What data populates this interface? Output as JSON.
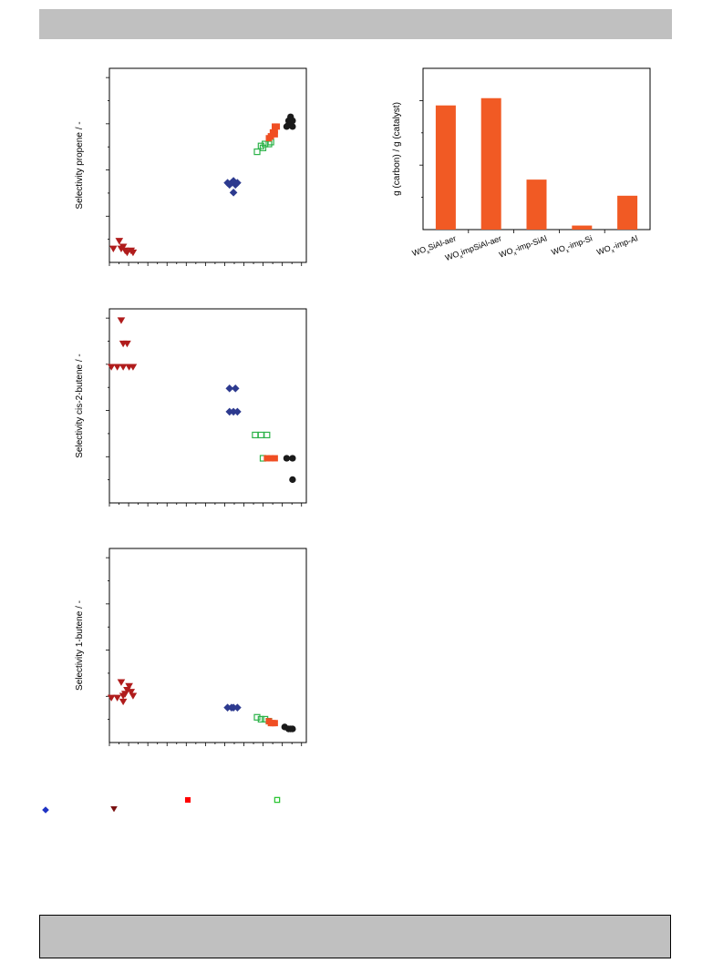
{
  "chart_data": [
    {
      "type": "scatter",
      "ylabel": "Selectivity propene / -",
      "xlim": [
        0,
        100
      ],
      "ylim": [
        0,
        100
      ],
      "series": [
        {
          "marker": "triangle-down",
          "color": "#b01c1c",
          "points": [
            [
              2,
              7
            ],
            [
              5,
              11
            ],
            [
              7,
              8
            ],
            [
              8,
              6
            ],
            [
              9,
              5
            ],
            [
              11,
              6
            ],
            [
              12,
              5
            ],
            [
              6,
              7
            ]
          ]
        },
        {
          "marker": "diamond",
          "color": "#2d3a8f",
          "points": [
            [
              60,
              41
            ],
            [
              62,
              41
            ],
            [
              64,
              40
            ],
            [
              61,
              40
            ],
            [
              63,
              42
            ],
            [
              65,
              41
            ],
            [
              63,
              36
            ]
          ]
        },
        {
          "marker": "square-open",
          "color": "#2db34a",
          "points": [
            [
              75,
              57
            ],
            [
              78,
              59
            ],
            [
              79,
              61
            ],
            [
              81,
              61
            ],
            [
              82,
              62
            ],
            [
              77,
              60
            ]
          ]
        },
        {
          "marker": "square",
          "color": "#f04e23",
          "points": [
            [
              81,
              64
            ],
            [
              82,
              65
            ],
            [
              83,
              67
            ],
            [
              84,
              68
            ],
            [
              84,
              70
            ],
            [
              85,
              70
            ],
            [
              84,
              66
            ]
          ]
        },
        {
          "marker": "circle",
          "color": "#1a1a1a",
          "points": [
            [
              90,
              70
            ],
            [
              93,
              70
            ],
            [
              91,
              73
            ],
            [
              92,
              75
            ],
            [
              93,
              73
            ],
            [
              91,
              71
            ]
          ]
        }
      ]
    },
    {
      "type": "scatter",
      "ylabel": "Selectivity cis-2-butene / -",
      "xlim": [
        0,
        100
      ],
      "ylim": [
        0,
        100
      ],
      "series": [
        {
          "marker": "triangle-down",
          "color": "#b01c1c",
          "points": [
            [
              6,
              94
            ],
            [
              7,
              82
            ],
            [
              9,
              82
            ],
            [
              1,
              70
            ],
            [
              4,
              70
            ],
            [
              7,
              70
            ],
            [
              10,
              70
            ],
            [
              12,
              70
            ]
          ]
        },
        {
          "marker": "diamond",
          "color": "#2d3a8f",
          "points": [
            [
              61,
              59
            ],
            [
              64,
              59
            ],
            [
              61,
              47
            ],
            [
              63,
              47
            ],
            [
              65,
              47
            ]
          ]
        },
        {
          "marker": "square-open",
          "color": "#2db34a",
          "points": [
            [
              74,
              35
            ],
            [
              77,
              35
            ],
            [
              80,
              35
            ],
            [
              78,
              23
            ]
          ]
        },
        {
          "marker": "square",
          "color": "#f04e23",
          "points": [
            [
              80,
              23
            ],
            [
              82,
              23
            ],
            [
              84,
              23
            ]
          ]
        },
        {
          "marker": "circle",
          "color": "#1a1a1a",
          "points": [
            [
              90,
              23
            ],
            [
              93,
              23
            ],
            [
              93,
              12
            ]
          ]
        }
      ]
    },
    {
      "type": "scatter",
      "ylabel": "Selectivity 1-butene / -",
      "xlim": [
        0,
        100
      ],
      "ylim": [
        0,
        100
      ],
      "series": [
        {
          "marker": "triangle-down",
          "color": "#b01c1c",
          "points": [
            [
              1,
              23
            ],
            [
              4,
              23
            ],
            [
              7,
              24
            ],
            [
              8,
              25
            ],
            [
              9,
              27
            ],
            [
              10,
              29
            ],
            [
              11,
              26
            ],
            [
              6,
              31
            ],
            [
              12,
              24
            ],
            [
              7,
              21
            ]
          ]
        },
        {
          "marker": "diamond",
          "color": "#2d3a8f",
          "points": [
            [
              60,
              18
            ],
            [
              62,
              18
            ],
            [
              63,
              18
            ],
            [
              65,
              18
            ]
          ]
        },
        {
          "marker": "square-open",
          "color": "#2db34a",
          "points": [
            [
              75,
              13
            ],
            [
              77,
              12
            ],
            [
              79,
              12
            ],
            [
              81,
              11
            ]
          ]
        },
        {
          "marker": "square",
          "color": "#f04e23",
          "points": [
            [
              81,
              11
            ],
            [
              82,
              10
            ],
            [
              83,
              10
            ],
            [
              84,
              10
            ]
          ]
        },
        {
          "marker": "circle",
          "color": "#1a1a1a",
          "points": [
            [
              89,
              8
            ],
            [
              91,
              7
            ],
            [
              92,
              7
            ],
            [
              93,
              7
            ]
          ]
        }
      ]
    },
    {
      "type": "bar",
      "ylabel": "g (carbon) / g (catalyst)",
      "ylim": [
        0,
        100
      ],
      "color": "#f15a24",
      "categories": [
        {
          "pre": "WO",
          "sub": "x",
          "post": "SiAl-aer"
        },
        {
          "pre": "WO",
          "sub": "x",
          "post": "impSiAl-aer"
        },
        {
          "pre": "WO",
          "sub": "x",
          "post": "-imp-SiAl"
        },
        {
          "pre": "WO",
          "sub": "x",
          "post": "-imp-Si"
        },
        {
          "pre": "WO",
          "sub": "x",
          "post": "-imp-Al"
        }
      ],
      "values": [
        77,
        81.5,
        31,
        2.5,
        21
      ]
    }
  ],
  "legend_swatches": [
    {
      "marker": "diamond",
      "color": "#1f33c4"
    },
    {
      "marker": "triangle-down",
      "color": "#7a1010"
    },
    {
      "marker": "square",
      "color": "#ff0000"
    },
    {
      "marker": "square-open",
      "color": "#22c22a"
    }
  ]
}
